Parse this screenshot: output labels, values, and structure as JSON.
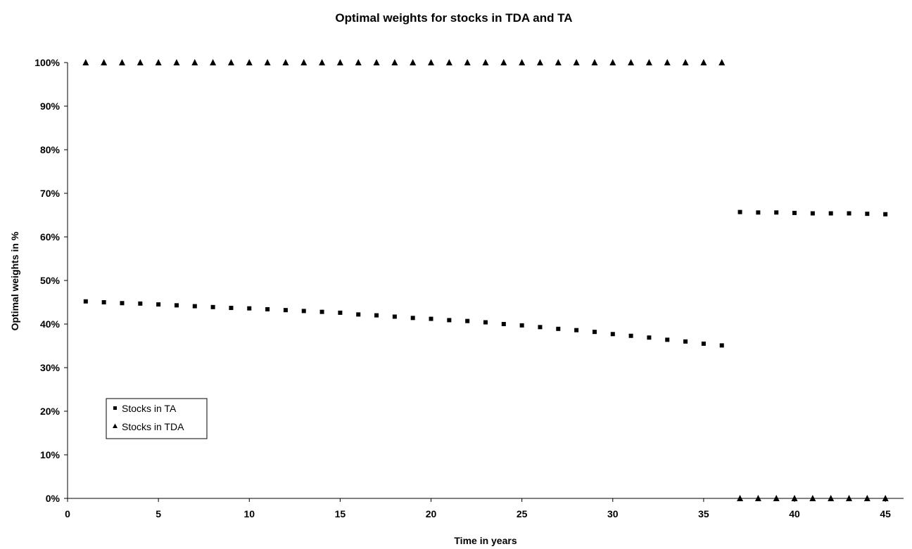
{
  "chart_data": {
    "type": "scatter",
    "title": "Optimal weights for stocks in TDA and TA",
    "xlabel": "Time in years",
    "ylabel": "Optimal weights in %",
    "xlim": [
      0,
      46
    ],
    "ylim": [
      0,
      100
    ],
    "x_ticks": [
      0,
      5,
      10,
      15,
      20,
      25,
      30,
      35,
      40,
      45
    ],
    "x_tick_labels": [
      "0",
      "5",
      "10",
      "15",
      "20",
      "25",
      "30",
      "35",
      "40",
      "45"
    ],
    "y_ticks": [
      0,
      10,
      20,
      30,
      40,
      50,
      60,
      70,
      80,
      90,
      100
    ],
    "y_tick_labels": [
      "0%",
      "10%",
      "20%",
      "30%",
      "40%",
      "50%",
      "60%",
      "70%",
      "80%",
      "90%",
      "100%"
    ],
    "grid": false,
    "legend_position": "bottom-left",
    "series": [
      {
        "name": "Stocks in TA",
        "marker": "square",
        "color": "#000000",
        "x": [
          1,
          2,
          3,
          4,
          5,
          6,
          7,
          8,
          9,
          10,
          11,
          12,
          13,
          14,
          15,
          16,
          17,
          18,
          19,
          20,
          21,
          22,
          23,
          24,
          25,
          26,
          27,
          28,
          29,
          30,
          31,
          32,
          33,
          34,
          35,
          36,
          37,
          38,
          39,
          40,
          41,
          42,
          43,
          44,
          45
        ],
        "y": [
          45.2,
          45.0,
          44.8,
          44.7,
          44.5,
          44.3,
          44.1,
          43.9,
          43.7,
          43.6,
          43.4,
          43.2,
          43.0,
          42.8,
          42.6,
          42.2,
          42.0,
          41.7,
          41.4,
          41.2,
          40.9,
          40.7,
          40.4,
          40.0,
          39.7,
          39.3,
          38.9,
          38.6,
          38.2,
          37.7,
          37.3,
          36.9,
          36.4,
          36.0,
          35.5,
          35.1,
          65.7,
          65.6,
          65.6,
          65.5,
          65.4,
          65.4,
          65.4,
          65.3,
          65.2
        ]
      },
      {
        "name": "Stocks in TDA",
        "marker": "triangle",
        "color": "#000000",
        "x": [
          1,
          2,
          3,
          4,
          5,
          6,
          7,
          8,
          9,
          10,
          11,
          12,
          13,
          14,
          15,
          16,
          17,
          18,
          19,
          20,
          21,
          22,
          23,
          24,
          25,
          26,
          27,
          28,
          29,
          30,
          31,
          32,
          33,
          34,
          35,
          36,
          37,
          38,
          39,
          40,
          41,
          42,
          43,
          44,
          45
        ],
        "y": [
          100,
          100,
          100,
          100,
          100,
          100,
          100,
          100,
          100,
          100,
          100,
          100,
          100,
          100,
          100,
          100,
          100,
          100,
          100,
          100,
          100,
          100,
          100,
          100,
          100,
          100,
          100,
          100,
          100,
          100,
          100,
          100,
          100,
          100,
          100,
          100,
          0,
          0,
          0,
          0,
          0,
          0,
          0,
          0,
          0
        ]
      }
    ]
  }
}
